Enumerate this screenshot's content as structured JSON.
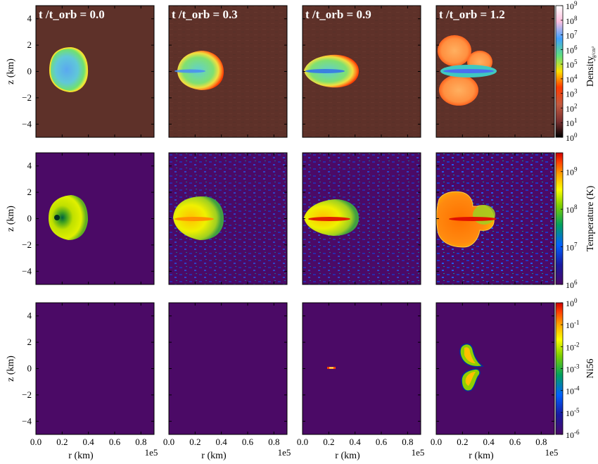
{
  "chart_data": {
    "type": "heatmap",
    "layout": "3x4 grid of panels",
    "columns": [
      {
        "title": "t /t_orb = 0.0"
      },
      {
        "title": "t /t_orb = 0.3"
      },
      {
        "title": "t /t_orb = 0.9"
      },
      {
        "title": "t /t_orb = 1.2"
      }
    ],
    "xlabel": "r  (km)",
    "x_offset_label": "1e5",
    "ylabel": "z  (km)",
    "xlim": [
      0.0,
      0.9
    ],
    "ylim": [
      -5,
      5
    ],
    "xticks": [
      "0.0",
      "0.2",
      "0.4",
      "0.6",
      "0.8"
    ],
    "xtick_values": [
      0.0,
      0.2,
      0.4,
      0.6,
      0.8
    ],
    "yticks": [
      "4",
      "2",
      "0",
      "−2",
      "−4"
    ],
    "ytick_values": [
      4,
      2,
      0,
      -2,
      -4
    ],
    "rows": [
      {
        "quantity": "Density",
        "colorbar_label": "Density",
        "colorbar_unit_fragment": "g/cm³",
        "colormap": [
          "#000000",
          "#7a3030",
          "#c25a40",
          "#ff3a00",
          "#ffe000",
          "#60e080",
          "#40a0ff",
          "#ffc0e0",
          "#ffffff"
        ],
        "background": "#5e3129",
        "colorbar_ticks": [
          {
            "base": "10",
            "exp": "9",
            "value": 9
          },
          {
            "base": "10",
            "exp": "8",
            "value": 8
          },
          {
            "base": "10",
            "exp": "7",
            "value": 7
          },
          {
            "base": "10",
            "exp": "6",
            "value": 6
          },
          {
            "base": "10",
            "exp": "5",
            "value": 5
          },
          {
            "base": "10",
            "exp": "4",
            "value": 4
          },
          {
            "base": "10",
            "exp": "3",
            "value": 3
          },
          {
            "base": "10",
            "exp": "2",
            "value": 2
          },
          {
            "base": "10",
            "exp": "1",
            "value": 1
          },
          {
            "base": "10",
            "exp": "0",
            "value": 0
          }
        ],
        "colorbar_range_log10": [
          0,
          9
        ]
      },
      {
        "quantity": "Temperature",
        "colorbar_label": "Temperature  (K)",
        "colormap": [
          "#4b0a66",
          "#1a1aa0",
          "#0060ff",
          "#00a060",
          "#80d000",
          "#ffff00",
          "#ffa000",
          "#ff4000",
          "#d00000"
        ],
        "background": "#4b0a66",
        "colorbar_ticks": [
          {
            "base": "10",
            "exp": "9",
            "value": 9
          },
          {
            "base": "10",
            "exp": "8",
            "value": 8
          },
          {
            "base": "10",
            "exp": "7",
            "value": 7
          },
          {
            "base": "10",
            "exp": "6",
            "value": 6
          }
        ],
        "colorbar_range_log10": [
          6,
          9.5
        ]
      },
      {
        "quantity": "Ni56",
        "colorbar_label": "Ni56",
        "colormap": [
          "#4b0a66",
          "#1a1aa0",
          "#0060ff",
          "#00a060",
          "#80d000",
          "#ffff00",
          "#ffa000",
          "#ff4000",
          "#d00000"
        ],
        "background": "#4b0a66",
        "colorbar_ticks": [
          {
            "base": "10",
            "exp": "0",
            "value": 0
          },
          {
            "base": "10",
            "exp": "-1",
            "value": -1
          },
          {
            "base": "10",
            "exp": "-2",
            "value": -2
          },
          {
            "base": "10",
            "exp": "-3",
            "value": -3
          },
          {
            "base": "10",
            "exp": "-4",
            "value": -4
          },
          {
            "base": "10",
            "exp": "-5",
            "value": -5
          },
          {
            "base": "10",
            "exp": "-6",
            "value": -6
          }
        ],
        "colorbar_range_log10": [
          -6,
          0
        ]
      }
    ]
  }
}
